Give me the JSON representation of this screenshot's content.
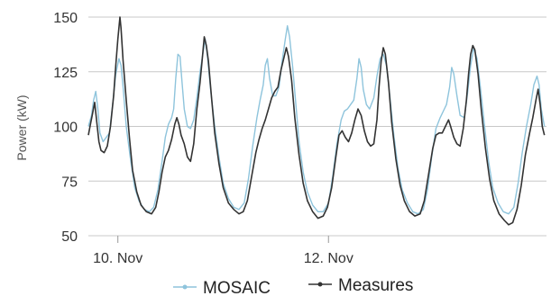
{
  "chart_data": {
    "type": "line",
    "xlabel": "",
    "ylabel": "Power (kW)",
    "ylim": [
      50,
      150
    ],
    "yticks": [
      50,
      75,
      100,
      125,
      150
    ],
    "xlim": [
      0,
      4.35
    ],
    "xticks": [
      {
        "x": 0.28,
        "label": "10. Nov"
      },
      {
        "x": 2.28,
        "label": "12. Nov"
      }
    ],
    "grid": true,
    "legend_position": "bottom-center",
    "series": [
      {
        "name": "MOSAIC",
        "color": "#8ec4dc",
        "marker": "dot",
        "points": [
          [
            0.0,
            100
          ],
          [
            0.03,
            105
          ],
          [
            0.05,
            112
          ],
          [
            0.07,
            116
          ],
          [
            0.09,
            108
          ],
          [
            0.11,
            97
          ],
          [
            0.14,
            93
          ],
          [
            0.17,
            95
          ],
          [
            0.2,
            97
          ],
          [
            0.23,
            110
          ],
          [
            0.26,
            124
          ],
          [
            0.29,
            131
          ],
          [
            0.31,
            128
          ],
          [
            0.33,
            118
          ],
          [
            0.36,
            100
          ],
          [
            0.4,
            85
          ],
          [
            0.44,
            72
          ],
          [
            0.48,
            66
          ],
          [
            0.53,
            62
          ],
          [
            0.58,
            61
          ],
          [
            0.62,
            63
          ],
          [
            0.66,
            71
          ],
          [
            0.7,
            84
          ],
          [
            0.73,
            95
          ],
          [
            0.76,
            101
          ],
          [
            0.79,
            104
          ],
          [
            0.81,
            108
          ],
          [
            0.83,
            122
          ],
          [
            0.85,
            133
          ],
          [
            0.87,
            132
          ],
          [
            0.89,
            120
          ],
          [
            0.91,
            108
          ],
          [
            0.94,
            100
          ],
          [
            0.97,
            99
          ],
          [
            1.0,
            103
          ],
          [
            1.03,
            113
          ],
          [
            1.06,
            125
          ],
          [
            1.09,
            134
          ],
          [
            1.11,
            140
          ],
          [
            1.13,
            132
          ],
          [
            1.16,
            117
          ],
          [
            1.2,
            100
          ],
          [
            1.24,
            86
          ],
          [
            1.28,
            74
          ],
          [
            1.33,
            67
          ],
          [
            1.38,
            63
          ],
          [
            1.43,
            62
          ],
          [
            1.48,
            65
          ],
          [
            1.52,
            76
          ],
          [
            1.56,
            91
          ],
          [
            1.6,
            104
          ],
          [
            1.63,
            112
          ],
          [
            1.66,
            119
          ],
          [
            1.68,
            128
          ],
          [
            1.7,
            131
          ],
          [
            1.72,
            122
          ],
          [
            1.75,
            114
          ],
          [
            1.78,
            114
          ],
          [
            1.81,
            118
          ],
          [
            1.84,
            130
          ],
          [
            1.87,
            140
          ],
          [
            1.89,
            146
          ],
          [
            1.91,
            141
          ],
          [
            1.94,
            127
          ],
          [
            1.97,
            110
          ],
          [
            2.0,
            93
          ],
          [
            2.04,
            79
          ],
          [
            2.08,
            70
          ],
          [
            2.13,
            64
          ],
          [
            2.18,
            61
          ],
          [
            2.23,
            61
          ],
          [
            2.28,
            65
          ],
          [
            2.32,
            77
          ],
          [
            2.36,
            92
          ],
          [
            2.4,
            103
          ],
          [
            2.43,
            107
          ],
          [
            2.46,
            108
          ],
          [
            2.49,
            110
          ],
          [
            2.52,
            112
          ],
          [
            2.55,
            122
          ],
          [
            2.57,
            131
          ],
          [
            2.59,
            127
          ],
          [
            2.61,
            117
          ],
          [
            2.64,
            110
          ],
          [
            2.67,
            108
          ],
          [
            2.71,
            113
          ],
          [
            2.74,
            123
          ],
          [
            2.77,
            131
          ],
          [
            2.8,
            133
          ],
          [
            2.83,
            128
          ],
          [
            2.86,
            115
          ],
          [
            2.9,
            96
          ],
          [
            2.94,
            81
          ],
          [
            2.98,
            71
          ],
          [
            3.03,
            65
          ],
          [
            3.08,
            61
          ],
          [
            3.13,
            60
          ],
          [
            3.18,
            62
          ],
          [
            3.22,
            71
          ],
          [
            3.26,
            86
          ],
          [
            3.3,
            99
          ],
          [
            3.34,
            104
          ],
          [
            3.37,
            107
          ],
          [
            3.4,
            110
          ],
          [
            3.43,
            118
          ],
          [
            3.45,
            127
          ],
          [
            3.47,
            124
          ],
          [
            3.5,
            114
          ],
          [
            3.53,
            105
          ],
          [
            3.57,
            104
          ],
          [
            3.6,
            115
          ],
          [
            3.63,
            128
          ],
          [
            3.66,
            136
          ],
          [
            3.69,
            131
          ],
          [
            3.72,
            119
          ],
          [
            3.76,
            101
          ],
          [
            3.8,
            84
          ],
          [
            3.84,
            72
          ],
          [
            3.89,
            65
          ],
          [
            3.94,
            61
          ],
          [
            3.99,
            60
          ],
          [
            4.04,
            63
          ],
          [
            4.08,
            74
          ],
          [
            4.12,
            88
          ],
          [
            4.16,
            100
          ],
          [
            4.2,
            110
          ],
          [
            4.23,
            119
          ],
          [
            4.26,
            123
          ],
          [
            4.28,
            119
          ],
          [
            4.3,
            108
          ],
          [
            4.33,
            100
          ]
        ]
      },
      {
        "name": "Measures",
        "color": "#333333",
        "marker": "dot",
        "points": [
          [
            0.0,
            96
          ],
          [
            0.02,
            101
          ],
          [
            0.04,
            106
          ],
          [
            0.06,
            111
          ],
          [
            0.08,
            102
          ],
          [
            0.1,
            93
          ],
          [
            0.12,
            89
          ],
          [
            0.15,
            88
          ],
          [
            0.18,
            91
          ],
          [
            0.21,
            100
          ],
          [
            0.24,
            114
          ],
          [
            0.26,
            128
          ],
          [
            0.28,
            140
          ],
          [
            0.3,
            150
          ],
          [
            0.31,
            145
          ],
          [
            0.33,
            130
          ],
          [
            0.36,
            112
          ],
          [
            0.39,
            95
          ],
          [
            0.42,
            80
          ],
          [
            0.46,
            70
          ],
          [
            0.5,
            64
          ],
          [
            0.55,
            61
          ],
          [
            0.6,
            60
          ],
          [
            0.64,
            63
          ],
          [
            0.67,
            70
          ],
          [
            0.7,
            79
          ],
          [
            0.73,
            86
          ],
          [
            0.76,
            89
          ],
          [
            0.79,
            94
          ],
          [
            0.82,
            101
          ],
          [
            0.84,
            104
          ],
          [
            0.86,
            101
          ],
          [
            0.88,
            96
          ],
          [
            0.91,
            92
          ],
          [
            0.94,
            86
          ],
          [
            0.97,
            84
          ],
          [
            1.0,
            92
          ],
          [
            1.03,
            108
          ],
          [
            1.06,
            120
          ],
          [
            1.08,
            130
          ],
          [
            1.1,
            141
          ],
          [
            1.12,
            137
          ],
          [
            1.14,
            130
          ],
          [
            1.17,
            113
          ],
          [
            1.2,
            97
          ],
          [
            1.24,
            83
          ],
          [
            1.28,
            72
          ],
          [
            1.33,
            65
          ],
          [
            1.38,
            62
          ],
          [
            1.43,
            60
          ],
          [
            1.47,
            61
          ],
          [
            1.51,
            66
          ],
          [
            1.55,
            77
          ],
          [
            1.59,
            88
          ],
          [
            1.62,
            94
          ],
          [
            1.65,
            99
          ],
          [
            1.68,
            103
          ],
          [
            1.71,
            108
          ],
          [
            1.74,
            113
          ],
          [
            1.77,
            116
          ],
          [
            1.8,
            118
          ],
          [
            1.83,
            126
          ],
          [
            1.86,
            132
          ],
          [
            1.88,
            136
          ],
          [
            1.9,
            132
          ],
          [
            1.93,
            121
          ],
          [
            1.96,
            104
          ],
          [
            2.0,
            87
          ],
          [
            2.04,
            74
          ],
          [
            2.08,
            66
          ],
          [
            2.13,
            61
          ],
          [
            2.18,
            58
          ],
          [
            2.23,
            59
          ],
          [
            2.27,
            63
          ],
          [
            2.31,
            72
          ],
          [
            2.35,
            86
          ],
          [
            2.38,
            96
          ],
          [
            2.41,
            98
          ],
          [
            2.44,
            95
          ],
          [
            2.47,
            93
          ],
          [
            2.5,
            97
          ],
          [
            2.53,
            103
          ],
          [
            2.56,
            108
          ],
          [
            2.59,
            105
          ],
          [
            2.62,
            98
          ],
          [
            2.65,
            93
          ],
          [
            2.68,
            91
          ],
          [
            2.71,
            92
          ],
          [
            2.74,
            103
          ],
          [
            2.76,
            118
          ],
          [
            2.78,
            130
          ],
          [
            2.8,
            136
          ],
          [
            2.82,
            133
          ],
          [
            2.85,
            120
          ],
          [
            2.88,
            102
          ],
          [
            2.92,
            85
          ],
          [
            2.96,
            73
          ],
          [
            3.0,
            66
          ],
          [
            3.05,
            61
          ],
          [
            3.1,
            59
          ],
          [
            3.15,
            60
          ],
          [
            3.19,
            66
          ],
          [
            3.23,
            78
          ],
          [
            3.27,
            90
          ],
          [
            3.3,
            96
          ],
          [
            3.33,
            97
          ],
          [
            3.36,
            97
          ],
          [
            3.39,
            100
          ],
          [
            3.42,
            103
          ],
          [
            3.44,
            100
          ],
          [
            3.47,
            95
          ],
          [
            3.5,
            92
          ],
          [
            3.53,
            91
          ],
          [
            3.56,
            99
          ],
          [
            3.59,
            112
          ],
          [
            3.61,
            124
          ],
          [
            3.63,
            133
          ],
          [
            3.65,
            137
          ],
          [
            3.67,
            135
          ],
          [
            3.7,
            124
          ],
          [
            3.73,
            108
          ],
          [
            3.77,
            90
          ],
          [
            3.81,
            76
          ],
          [
            3.85,
            66
          ],
          [
            3.9,
            60
          ],
          [
            3.95,
            57
          ],
          [
            3.99,
            55
          ],
          [
            4.03,
            56
          ],
          [
            4.07,
            62
          ],
          [
            4.11,
            73
          ],
          [
            4.15,
            87
          ],
          [
            4.19,
            97
          ],
          [
            4.22,
            104
          ],
          [
            4.25,
            112
          ],
          [
            4.27,
            117
          ],
          [
            4.29,
            110
          ],
          [
            4.31,
            100
          ],
          [
            4.33,
            96
          ]
        ]
      }
    ]
  }
}
